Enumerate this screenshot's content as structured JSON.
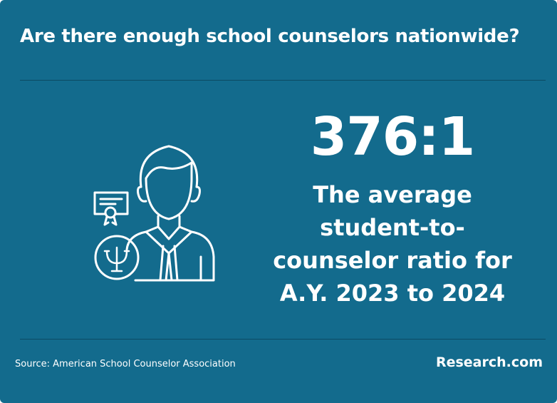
{
  "header": {
    "title": "Are there enough school counselors nationwide?"
  },
  "stat": {
    "value": "376:1",
    "description_lines": [
      "The average",
      "student-to-",
      "counselor ratio for",
      "A.Y. 2023 to 2024"
    ]
  },
  "footer": {
    "source": "Source: American School Counselor Association",
    "brand": "Research.com"
  }
}
